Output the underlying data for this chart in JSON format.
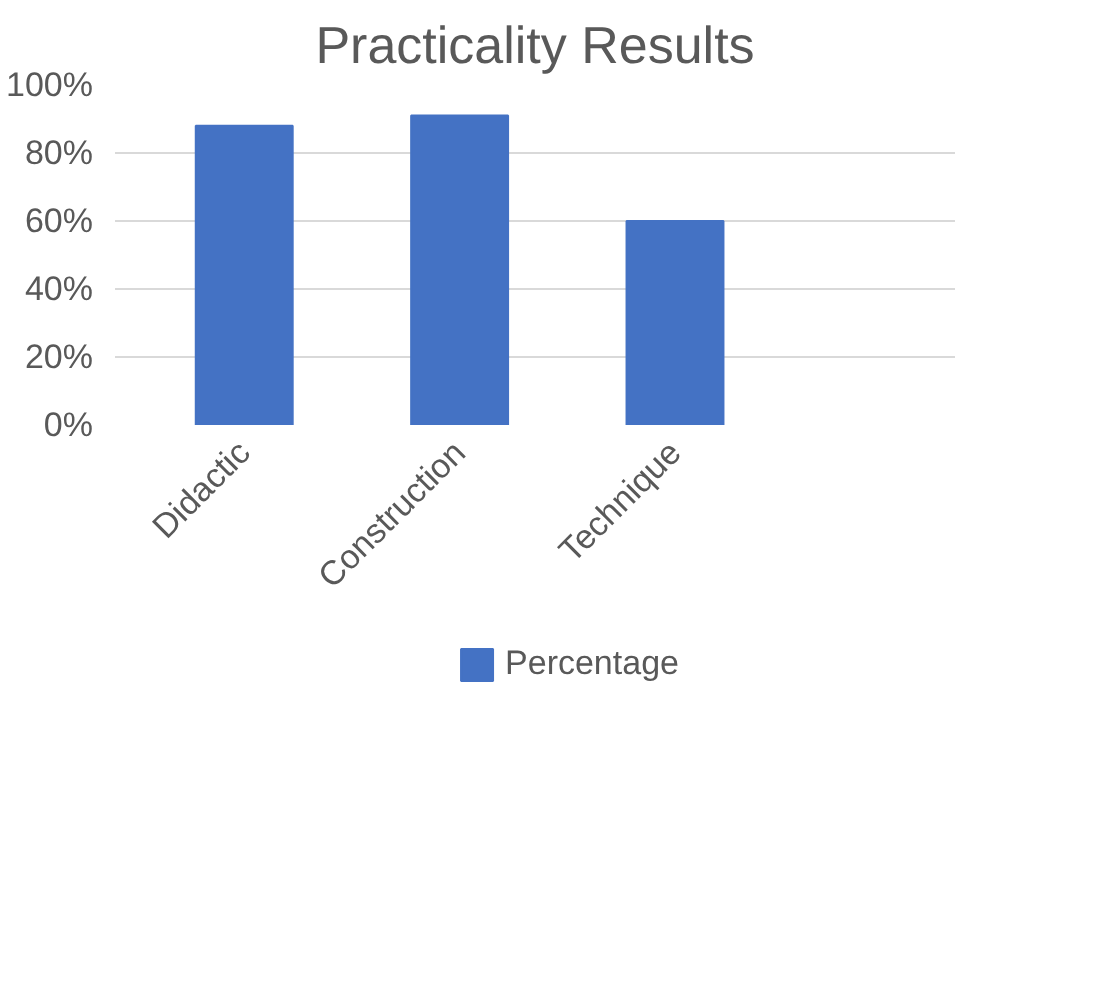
{
  "chart_data": {
    "type": "bar",
    "title": "Practicality Results",
    "categories": [
      "Didactic",
      "Construction",
      "Technique"
    ],
    "series": [
      {
        "name": "Percentage",
        "color": "#4472c4",
        "values": [
          88,
          91,
          60
        ]
      }
    ],
    "ylim": [
      0,
      100
    ],
    "yticks": [
      {
        "value": 0,
        "label": "0%"
      },
      {
        "value": 20,
        "label": "20%"
      },
      {
        "value": 40,
        "label": "40%"
      },
      {
        "value": 60,
        "label": "60%"
      },
      {
        "value": 80,
        "label": "80%"
      },
      {
        "value": 100,
        "label": "100%"
      }
    ],
    "grid": "y",
    "legend": "bottom"
  }
}
